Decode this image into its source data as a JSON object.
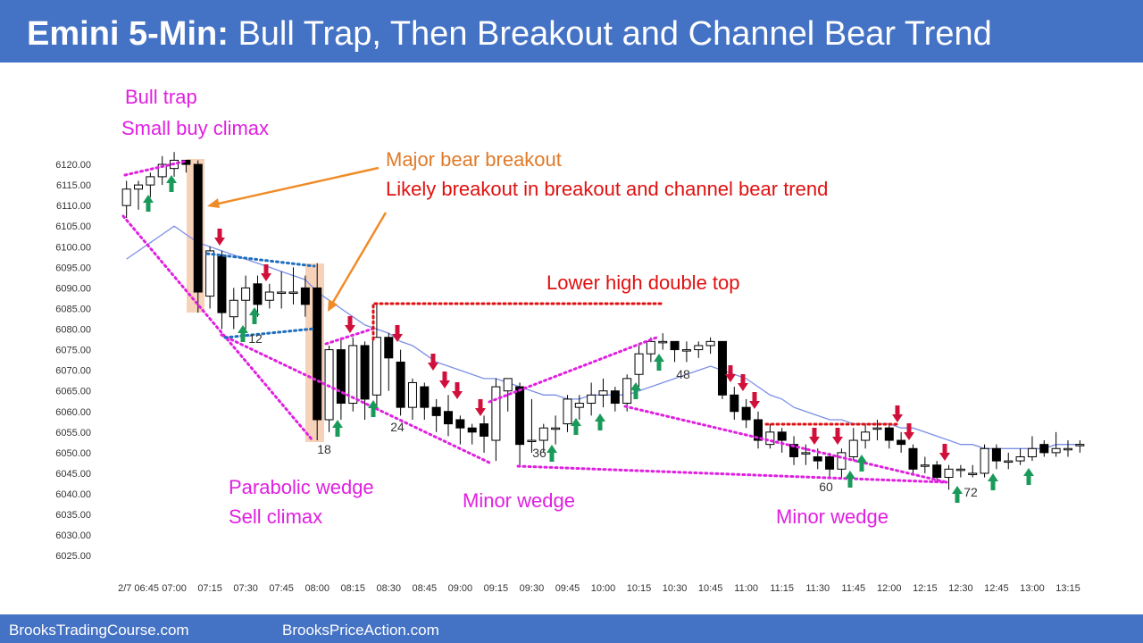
{
  "header": {
    "title_bold": "Emini 5-Min:",
    "title_rest": "Bull Trap, Then Breakout and Channel Bear Trend"
  },
  "chart_data": {
    "type": "candlestick",
    "categories": [
      null,
      "2/7 06:45",
      null,
      null,
      "07:00",
      null,
      null,
      "07:15",
      null,
      null,
      "07:30",
      null,
      null,
      "07:45",
      null,
      null,
      "08:00",
      null,
      null,
      "08:15",
      null,
      null,
      "08:30",
      null,
      null,
      "08:45",
      null,
      null,
      "09:00",
      null,
      null,
      "09:15",
      null,
      null,
      "09:30",
      null,
      null,
      "09:45",
      null,
      null,
      "10:00",
      null,
      null,
      "10:15",
      null,
      null,
      "10:30",
      null,
      null,
      "10:45",
      null,
      null,
      "11:00",
      null,
      null,
      "11:15",
      null,
      null,
      "11:30",
      null,
      null,
      "11:45",
      null,
      null,
      "12:00",
      null,
      null,
      "12:15",
      null,
      null,
      "12:30",
      null,
      null,
      "12:45",
      null,
      null,
      "13:00",
      null,
      null,
      "13:15",
      null
    ],
    "open": [
      6110,
      6114,
      6115,
      6117,
      6119,
      6121,
      6120,
      6088,
      6098,
      6083,
      6087,
      6091,
      6087,
      6089,
      6089,
      6090,
      6090,
      6058,
      6075,
      6062,
      6076,
      6064,
      6078,
      6072,
      6061,
      6066,
      6061,
      6060,
      6058,
      6056,
      6057,
      6053,
      6065,
      6066,
      6053,
      6053,
      6056,
      6057,
      6061,
      6062,
      6064,
      6065,
      6062,
      6069,
      6074,
      6077,
      6077,
      6075,
      6075,
      6076,
      6077,
      6064,
      6061,
      6058,
      6052,
      6055,
      6052,
      6050,
      6049,
      6049,
      6046,
      6049,
      6053,
      6056,
      6056,
      6053,
      6051,
      6047,
      6047,
      6044,
      6046,
      6045,
      6045,
      6051,
      6048,
      6048,
      6049,
      6052,
      6050,
      6051,
      6052
    ],
    "high": [
      6116,
      6116,
      6118,
      6122,
      6123,
      6121,
      6121,
      6100,
      6099,
      6090,
      6093,
      6093,
      6091,
      6094,
      6095,
      6093,
      6096,
      6076,
      6078,
      6078,
      6077,
      6086,
      6079,
      6075,
      6068,
      6067,
      6063,
      6064,
      6059,
      6057,
      6059,
      6068,
      6068,
      6067,
      6063,
      6057,
      6059,
      6064,
      6064,
      6067,
      6068,
      6066,
      6069,
      6076,
      6078,
      6079,
      6077,
      6077,
      6077,
      6078,
      6077,
      6066,
      6063,
      6060,
      6057,
      6056,
      6054,
      6052,
      6051,
      6050,
      6051,
      6056,
      6057,
      6058,
      6057,
      6055,
      6052,
      6049,
      6048,
      6047,
      6047,
      6047,
      6052,
      6052,
      6050,
      6051,
      6054,
      6053,
      6055,
      6053,
      6053
    ],
    "low": [
      6107,
      6109,
      6112,
      6115,
      6117,
      6118,
      6084,
      6085,
      6080,
      6080,
      6080,
      6083,
      6085,
      6085,
      6086,
      6083,
      6053,
      6055,
      6058,
      6060,
      6058,
      6061,
      6065,
      6059,
      6058,
      6058,
      6055,
      6054,
      6052,
      6052,
      6050,
      6048,
      6060,
      6047,
      6050,
      6050,
      6052,
      6055,
      6058,
      6059,
      6061,
      6060,
      6060,
      6066,
      6072,
      6075,
      6072,
      6072,
      6073,
      6074,
      6063,
      6058,
      6056,
      6051,
      6051,
      6050,
      6047,
      6047,
      6046,
      6044,
      6044,
      6048,
      6051,
      6053,
      6051,
      6050,
      6045,
      6045,
      6043,
      6041,
      6044,
      6044,
      6044,
      6046,
      6046,
      6047,
      6048,
      6049,
      6049,
      6049,
      6050
    ],
    "close": [
      6114,
      6115,
      6117,
      6120,
      6121,
      6120,
      6089,
      6099,
      6084,
      6087,
      6090,
      6086,
      6089,
      6089,
      6089,
      6086,
      6058,
      6075,
      6062,
      6076,
      6063,
      6078,
      6073,
      6061,
      6067,
      6061,
      6059,
      6057,
      6056,
      6055,
      6054,
      6066,
      6068,
      6052,
      6053,
      6056,
      6056,
      6063,
      6062,
      6064,
      6065,
      6062,
      6068,
      6074,
      6077,
      6077,
      6075,
      6075,
      6076,
      6077,
      6064,
      6060,
      6058,
      6053,
      6055,
      6053,
      6049,
      6050,
      6048,
      6046,
      6050,
      6053,
      6055,
      6056,
      6053,
      6052,
      6046,
      6047,
      6044,
      6046,
      6046,
      6045,
      6051,
      6048,
      6048,
      6049,
      6051,
      6050,
      6051,
      6051,
      6052
    ],
    "up_color": "#ffffff",
    "down_color": "#000000",
    "line": {
      "color": "#7b8fe6",
      "values": [
        6097,
        6099,
        6101,
        6103,
        6105,
        6103,
        6101,
        6100,
        6099,
        6098,
        6097,
        6096,
        6095,
        6094,
        6093,
        6092,
        6089,
        6087,
        6085,
        6083,
        6081,
        6080,
        6079,
        6077,
        6076,
        6074,
        6072,
        6071,
        6070,
        6069,
        6068,
        6068,
        6067,
        6066,
        6065,
        6064,
        6064,
        6063,
        6063,
        6064,
        6064,
        6064,
        6064,
        6065,
        6066,
        6067,
        6068,
        6069,
        6070,
        6071,
        6070,
        6069,
        6068,
        6066,
        6064,
        6063,
        6061,
        6060,
        6059,
        6058,
        6058,
        6057,
        6057,
        6057,
        6057,
        6056,
        6056,
        6055,
        6054,
        6053,
        6052,
        6052,
        6051,
        6051,
        6051,
        6051,
        6051,
        6051,
        6052,
        6052,
        6052
      ]
    },
    "ylim": [
      6022,
      6125
    ],
    "yticks": [
      {
        "value": 6025,
        "label": "6025.00"
      },
      {
        "value": 6030,
        "label": "6030.00"
      },
      {
        "value": 6035,
        "label": "6035.00"
      },
      {
        "value": 6040,
        "label": "6040.00"
      },
      {
        "value": 6045,
        "label": "6045.00"
      },
      {
        "value": 6050,
        "label": "6050.00"
      },
      {
        "value": 6055,
        "label": "6055.00"
      },
      {
        "value": 6060,
        "label": "6060.00"
      },
      {
        "value": 6065,
        "label": "6065.00"
      },
      {
        "value": 6070,
        "label": "6070.00"
      },
      {
        "value": 6075,
        "label": "6075.00"
      },
      {
        "value": 6080,
        "label": "6080.00"
      },
      {
        "value": 6085,
        "label": "6085.00"
      },
      {
        "value": 6090,
        "label": "6090.00"
      },
      {
        "value": 6095,
        "label": "6095.00"
      },
      {
        "value": 6100,
        "label": "6100.00"
      },
      {
        "value": 6105,
        "label": "6105.00"
      },
      {
        "value": 6110,
        "label": "6110.00"
      },
      {
        "value": 6115,
        "label": "6115.00"
      },
      {
        "value": 6120,
        "label": "6120.00"
      }
    ]
  },
  "annotations": [
    {
      "text": "Bull trap",
      "color": "#e020e0"
    },
    {
      "text": "Small buy climax",
      "color": "#e020e0"
    },
    {
      "text": "Major bear breakout",
      "color": "#e07a28"
    },
    {
      "text": "Likely breakout in breakout and channel bear trend",
      "color": "#e01010"
    },
    {
      "text": "Lower high double top",
      "color": "#e01010"
    },
    {
      "text": "Parabolic wedge",
      "color": "#e020e0"
    },
    {
      "text": "Sell climax",
      "color": "#e020e0"
    },
    {
      "text": "Minor wedge",
      "color": "#e020e0"
    },
    {
      "text": "Minor wedge",
      "color": "#e020e0"
    }
  ],
  "bar_numbers": [
    "12",
    "18",
    "24",
    "36",
    "48",
    "60",
    "72"
  ],
  "footer": {
    "left": "BrooksTradingCourse.com",
    "right": "BrooksPriceAction.com"
  }
}
